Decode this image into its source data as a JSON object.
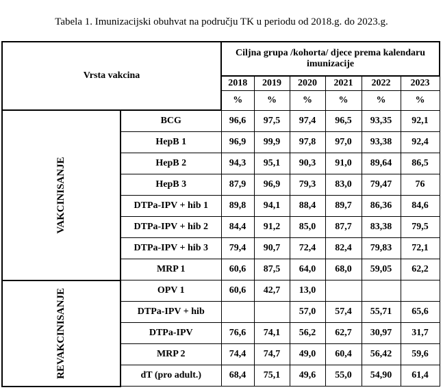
{
  "title": "Tabela 1. Imunizacijski obuhvat na području TK u periodu od 2018.g. do 2023.g.",
  "header": {
    "vaccine_type": "Vrsta vakcina",
    "target_group": "Ciljna grupa /kohorta/ djece prema kalendaru imunizacije",
    "years": [
      "2018",
      "2019",
      "2020",
      "2021",
      "2022",
      "2023"
    ],
    "units": [
      "%",
      "%",
      "%",
      "%",
      "%",
      "%"
    ]
  },
  "groups": [
    {
      "label": "VAKCINISANJE",
      "rows": [
        {
          "vaccine": "BCG",
          "values": [
            "96,6",
            "97,5",
            "97,4",
            "96,5",
            "93,35",
            "92,1"
          ]
        },
        {
          "vaccine": "HepB 1",
          "values": [
            "96,9",
            "99,9",
            "97,8",
            "97,0",
            "93,38",
            "92,4"
          ]
        },
        {
          "vaccine": "HepB 2",
          "values": [
            "94,3",
            "95,1",
            "90,3",
            "91,0",
            "89,64",
            "86,5"
          ]
        },
        {
          "vaccine": "HepB 3",
          "values": [
            "87,9",
            "96,9",
            "79,3",
            "83,0",
            "79,47",
            "76"
          ]
        },
        {
          "vaccine": "DTPa-IPV + hib 1",
          "values": [
            "89,8",
            "94,1",
            "88,4",
            "89,7",
            "86,36",
            "84,6"
          ]
        },
        {
          "vaccine": "DTPa-IPV + hib 2",
          "values": [
            "84,4",
            "91,2",
            "85,0",
            "87,7",
            "83,38",
            "79,5"
          ]
        },
        {
          "vaccine": "DTPa-IPV + hib 3",
          "values": [
            "79,4",
            "90,7",
            "72,4",
            "82,4",
            "79,83",
            "72,1"
          ]
        },
        {
          "vaccine": "MRP 1",
          "values": [
            "60,6",
            "87,5",
            "64,0",
            "68,0",
            "59,05",
            "62,2"
          ]
        }
      ]
    },
    {
      "label": "REVAKCINISANJE",
      "rows": [
        {
          "vaccine": "OPV 1",
          "values": [
            "60,6",
            "42,7",
            "13,0",
            null,
            null,
            null
          ]
        },
        {
          "vaccine": "DTPa-IPV + hib",
          "values": [
            null,
            null,
            "57,0",
            "57,4",
            "55,71",
            "65,6"
          ]
        },
        {
          "vaccine": "DTPa-IPV",
          "values": [
            "76,6",
            "74,1",
            "56,2",
            "62,7",
            "30,97",
            "31,7"
          ]
        },
        {
          "vaccine": "MRP 2",
          "values": [
            "74,4",
            "74,7",
            "49,0",
            "60,4",
            "56,42",
            "59,6"
          ]
        },
        {
          "vaccine": "dT (pro adult.)",
          "values": [
            "68,4",
            "75,1",
            "49,6",
            "55,0",
            "54,90",
            "61,4"
          ]
        }
      ]
    }
  ]
}
